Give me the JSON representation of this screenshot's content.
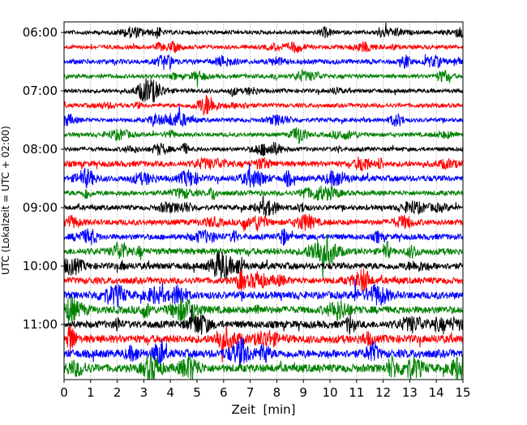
{
  "chart_data": {
    "type": "line",
    "subtype": "helicorder",
    "title": "",
    "xlabel": "Zeit  [min]",
    "ylabel": "UTC (Lokalzeit = UTC + 02:00)",
    "xlim": [
      0,
      15
    ],
    "x_ticks": [
      "0",
      "1",
      "2",
      "3",
      "4",
      "5",
      "6",
      "7",
      "8",
      "9",
      "10",
      "11",
      "12",
      "13",
      "14",
      "15"
    ],
    "y_tick_labels": [
      "06:00",
      "07:00",
      "08:00",
      "09:00",
      "10:00",
      "11:00"
    ],
    "grid": "vertical dotted at each minute",
    "trace_interval_min": 15,
    "trace_colors": [
      "#000000",
      "#ff0000",
      "#0000ff",
      "#008000"
    ],
    "traces": [
      "06:00",
      "06:15",
      "06:30",
      "06:45",
      "07:00",
      "07:15",
      "07:30",
      "07:45",
      "08:00",
      "08:15",
      "08:30",
      "08:45",
      "09:00",
      "09:15",
      "09:30",
      "09:45",
      "10:00",
      "10:15",
      "10:30",
      "10:45",
      "11:00",
      "11:15",
      "11:30",
      "11:45"
    ],
    "relative_noise_amplitude": [
      0.5,
      0.5,
      0.6,
      0.5,
      0.5,
      0.5,
      0.5,
      0.5,
      0.5,
      0.7,
      0.7,
      0.6,
      0.6,
      0.7,
      0.7,
      0.8,
      0.8,
      0.8,
      0.9,
      0.9,
      0.9,
      1.0,
      1.0,
      1.0
    ]
  }
}
